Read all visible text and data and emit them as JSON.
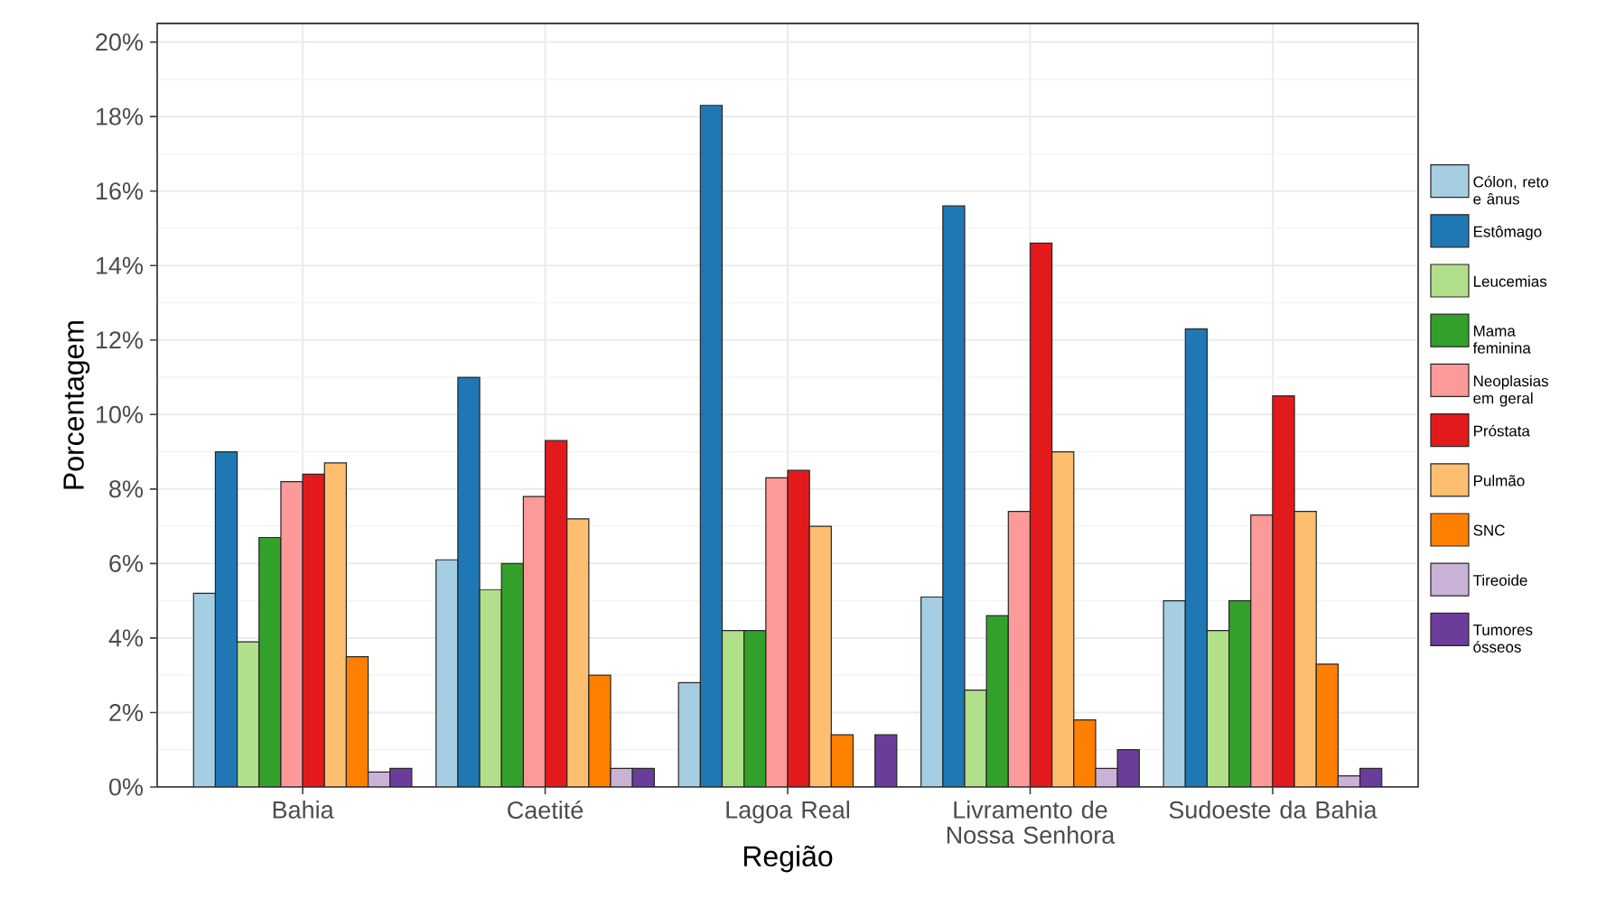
{
  "chart_data": {
    "type": "bar",
    "xlabel": "Região",
    "ylabel": "Porcentagem",
    "categories": [
      "Bahia",
      "Caetité",
      "Lagoa Real",
      "Livramento de Nossa Senhora",
      "Sudoeste da Bahia"
    ],
    "series": [
      {
        "name": "Cólon, reto e ânus",
        "color": "#a6cee3",
        "values": [
          5.2,
          6.1,
          2.8,
          5.1,
          5.0
        ]
      },
      {
        "name": "Estômago",
        "color": "#1f78b4",
        "values": [
          9.0,
          11.0,
          18.3,
          15.6,
          12.3
        ]
      },
      {
        "name": "Leucemias",
        "color": "#b2df8a",
        "values": [
          3.9,
          5.3,
          4.2,
          2.6,
          4.2
        ]
      },
      {
        "name": "Mama feminina",
        "color": "#33a02c",
        "values": [
          6.7,
          6.0,
          4.2,
          4.6,
          5.0
        ]
      },
      {
        "name": "Neoplasias em geral",
        "color": "#fb9a99",
        "values": [
          8.2,
          7.8,
          8.3,
          7.4,
          7.3
        ]
      },
      {
        "name": "Próstata",
        "color": "#e31a1c",
        "values": [
          8.4,
          9.3,
          8.5,
          14.6,
          10.5
        ]
      },
      {
        "name": "Pulmão",
        "color": "#fdbf6f",
        "values": [
          8.7,
          7.2,
          7.0,
          9.0,
          7.4
        ]
      },
      {
        "name": "SNC",
        "color": "#ff7f00",
        "values": [
          3.5,
          3.0,
          1.4,
          1.8,
          3.3
        ]
      },
      {
        "name": "Tireoide",
        "color": "#cab2d6",
        "values": [
          0.4,
          0.5,
          null,
          0.5,
          0.3
        ]
      },
      {
        "name": "Tumores ósseos",
        "color": "#6a3d9a",
        "values": [
          0.5,
          0.5,
          1.4,
          1.0,
          0.5
        ]
      }
    ],
    "ylim": [
      0,
      20.5
    ],
    "yticks": [
      {
        "value": 0,
        "label": "0%"
      },
      {
        "value": 2,
        "label": "2%"
      },
      {
        "value": 4,
        "label": "4%"
      },
      {
        "value": 6,
        "label": "6%"
      },
      {
        "value": 8,
        "label": "8%"
      },
      {
        "value": 10,
        "label": "10%"
      },
      {
        "value": 12,
        "label": "12%"
      },
      {
        "value": 14,
        "label": "14%"
      },
      {
        "value": 16,
        "label": "16%"
      },
      {
        "value": 18,
        "label": "18%"
      },
      {
        "value": 20,
        "label": "20%"
      }
    ],
    "grid": true,
    "legend": "right"
  }
}
